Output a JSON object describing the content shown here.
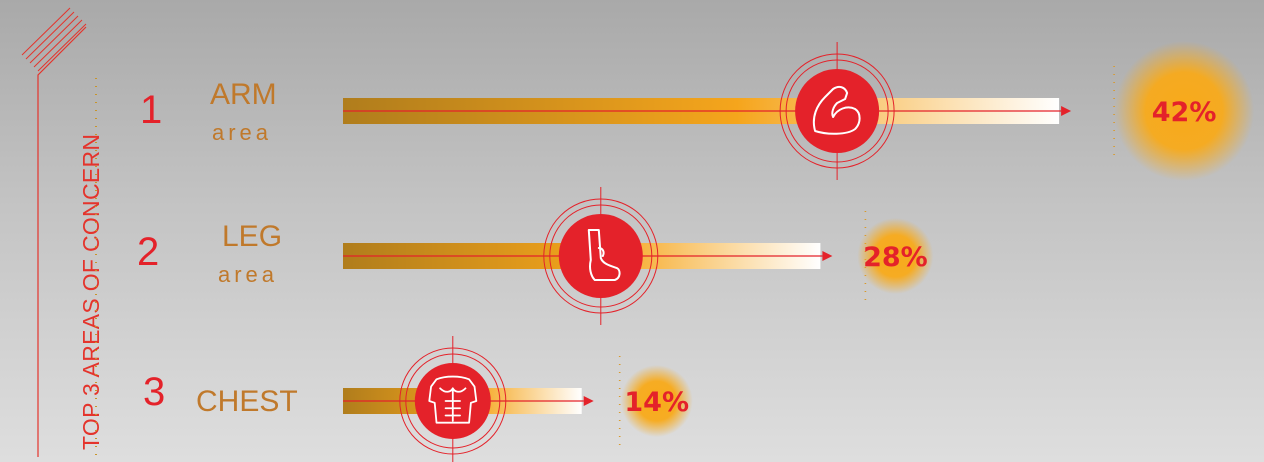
{
  "side_title": "TOP 3 AREAS OF CONCERN",
  "colors": {
    "accent": "#e4222a",
    "label": "#c0792b",
    "bar_start": "#b07d1c",
    "bar_mid": "#f5a51c",
    "bar_end": "#ffffff"
  },
  "chart_data": {
    "type": "bar",
    "orientation": "horizontal",
    "title": "TOP 3 AREAS OF CONCERN",
    "categories": [
      "ARM area",
      "LEG area",
      "CHEST"
    ],
    "values": [
      42,
      28,
      14
    ],
    "unit": "%",
    "rows": [
      {
        "rank": "1",
        "label": "ARM",
        "sublabel": "area",
        "value": 42,
        "value_label": "42%",
        "icon": "flexed-arm-icon"
      },
      {
        "rank": "2",
        "label": "LEG",
        "sublabel": "area",
        "value": 28,
        "value_label": "28%",
        "icon": "leg-icon"
      },
      {
        "rank": "3",
        "label": "CHEST",
        "sublabel": "",
        "value": 14,
        "value_label": "14%",
        "icon": "chest-torso-icon"
      }
    ]
  }
}
